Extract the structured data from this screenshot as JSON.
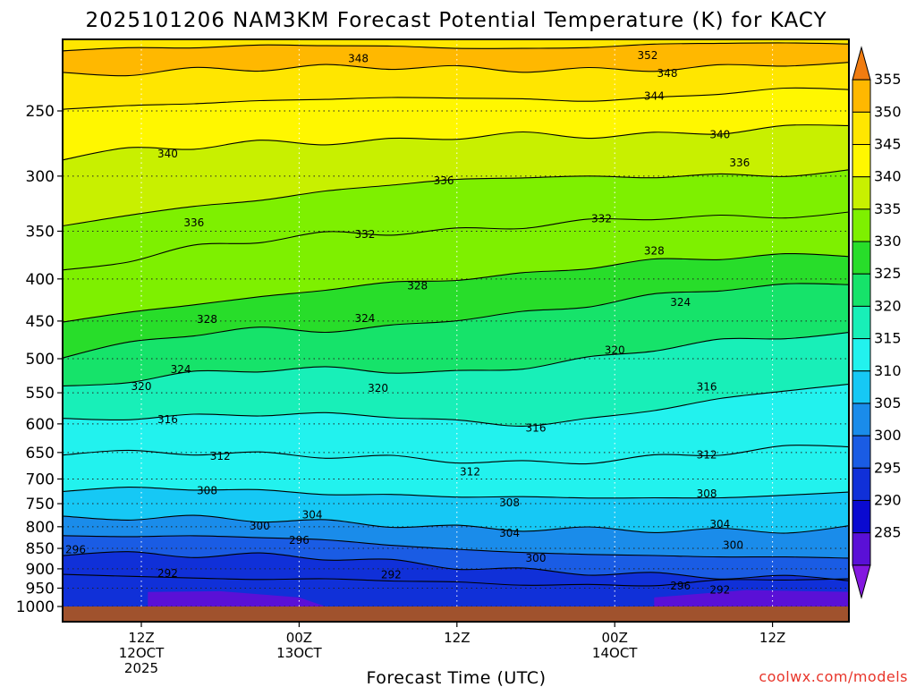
{
  "chart_data": {
    "type": "heatmap",
    "title": "2025101206 NAM3KM Forecast Potential Temperature (K) for KACY",
    "xlabel": "Forecast Time (UTC)",
    "ylabel": "",
    "credit": "coolwx.com/models",
    "y_scale": "log",
    "y_reversed": true,
    "y_range": [
      200,
      1000
    ],
    "y_ticks": [
      "250",
      "300",
      "350",
      "400",
      "450",
      "500",
      "550",
      "600",
      "650",
      "700",
      "750",
      "800",
      "850",
      "900",
      "950",
      "1000"
    ],
    "x_ticks": [
      {
        "hour": 6,
        "line1": "12Z",
        "line2": "12OCT",
        "line3": "2025"
      },
      {
        "hour": 18,
        "line1": "00Z",
        "line2": "13OCT",
        "line3": ""
      },
      {
        "hour": 30,
        "line1": "12Z",
        "line2": "",
        "line3": ""
      },
      {
        "hour": 42,
        "line1": "00Z",
        "line2": "14OCT",
        "line3": ""
      },
      {
        "hour": 54,
        "line1": "12Z",
        "line2": "",
        "line3": ""
      }
    ],
    "x_range": [
      0,
      60
    ],
    "grid": true,
    "colorbar": {
      "unit": "K",
      "labels": [
        "355",
        "350",
        "345",
        "340",
        "335",
        "330",
        "325",
        "320",
        "315",
        "310",
        "305",
        "300",
        "295",
        "290",
        "285"
      ],
      "levels": [
        355,
        350,
        345,
        340,
        335,
        330,
        325,
        320,
        315,
        310,
        305,
        300,
        295,
        290,
        285,
        280
      ],
      "colors": [
        "#f07c10",
        "#ffb800",
        "#ffe600",
        "#fff700",
        "#c8f000",
        "#7ef000",
        "#28dd2a",
        "#16e36a",
        "#18efb8",
        "#22f2ee",
        "#16c8f5",
        "#1a8cea",
        "#1a5ce4",
        "#1030d8",
        "#0a0ad0",
        "#5a10d6",
        "#8418e0"
      ]
    },
    "contours": [
      {
        "label": "292",
        "pressures": [
          914,
          915,
          920,
          926,
          930,
          934,
          936,
          937,
          938,
          940,
          934,
          930,
          930
        ]
      },
      {
        "label": "296",
        "pressures": [
          858,
          860,
          865,
          870,
          876,
          884,
          892,
          900,
          908,
          918,
          924,
          925,
          923
        ]
      },
      {
        "label": "300",
        "pressures": [
          818,
          820,
          824,
          828,
          832,
          840,
          848,
          858,
          866,
          872,
          872,
          870,
          868
        ]
      },
      {
        "label": "304",
        "pressures": [
          780,
          782,
          784,
          786,
          788,
          792,
          800,
          806,
          810,
          810,
          808,
          805,
          800
        ]
      },
      {
        "label": "308",
        "pressures": [
          724,
          722,
          722,
          722,
          726,
          730,
          736,
          740,
          740,
          738,
          734,
          730,
          726
        ]
      },
      {
        "label": "312",
        "pressures": [
          654,
          652,
          650,
          650,
          654,
          660,
          668,
          672,
          666,
          656,
          648,
          642,
          638
        ]
      },
      {
        "label": "316",
        "pressures": [
          596,
          590,
          584,
          582,
          584,
          590,
          598,
          602,
          590,
          574,
          560,
          548,
          540
        ]
      },
      {
        "label": "320",
        "pressures": [
          542,
          530,
          518,
          516,
          516,
          520,
          520,
          510,
          498,
          486,
          478,
          472,
          468
        ]
      },
      {
        "label": "324",
        "pressures": [
          494,
          478,
          466,
          462,
          464,
          458,
          446,
          438,
          430,
          420,
          414,
          408,
          404
        ]
      },
      {
        "label": "328",
        "pressures": [
          448,
          440,
          430,
          424,
          412,
          404,
          398,
          394,
          388,
          382,
          378,
          374,
          372
        ]
      },
      {
        "label": "332",
        "pressures": [
          392,
          380,
          368,
          360,
          352,
          350,
          348,
          346,
          342,
          338,
          336,
          334,
          332
        ]
      },
      {
        "label": "336",
        "pressures": [
          346,
          336,
          328,
          320,
          312,
          306,
          304,
          302,
          302,
          300,
          298,
          298,
          296
        ]
      },
      {
        "label": "340",
        "pressures": [
          286,
          280,
          276,
          272,
          272,
          272,
          270,
          268,
          268,
          266,
          264,
          262,
          260
        ]
      },
      {
        "label": "344",
        "pressures": [
          250,
          246,
          244,
          242,
          242,
          242,
          242,
          242,
          242,
          240,
          238,
          236,
          236
        ]
      },
      {
        "label": "348",
        "pressures": [
          226,
          224,
          222,
          222,
          222,
          222,
          222,
          222,
          222,
          222,
          222,
          220,
          220
        ]
      },
      {
        "label": "352",
        "pressures": [
          210,
          209,
          209,
          209,
          209,
          209,
          209,
          209,
          209,
          208,
          208,
          207,
          207
        ]
      }
    ],
    "contour_labels": [
      {
        "text": "348",
        "hour": 22.5,
        "p": 216
      },
      {
        "text": "352",
        "hour": 44.5,
        "p": 214
      },
      {
        "text": "348",
        "hour": 46,
        "p": 225
      },
      {
        "text": "344",
        "hour": 45,
        "p": 240
      },
      {
        "text": "340",
        "hour": 50,
        "p": 267
      },
      {
        "text": "340",
        "hour": 8,
        "p": 282
      },
      {
        "text": "336",
        "hour": 29,
        "p": 304
      },
      {
        "text": "336",
        "hour": 51.5,
        "p": 289
      },
      {
        "text": "336",
        "hour": 10,
        "p": 342
      },
      {
        "text": "332",
        "hour": 23,
        "p": 353
      },
      {
        "text": "332",
        "hour": 41,
        "p": 338
      },
      {
        "text": "328",
        "hour": 45,
        "p": 370
      },
      {
        "text": "328",
        "hour": 27,
        "p": 408
      },
      {
        "text": "328",
        "hour": 11,
        "p": 448
      },
      {
        "text": "324",
        "hour": 23,
        "p": 447
      },
      {
        "text": "324",
        "hour": 47,
        "p": 427
      },
      {
        "text": "324",
        "hour": 9,
        "p": 515
      },
      {
        "text": "320",
        "hour": 6,
        "p": 540
      },
      {
        "text": "320",
        "hour": 24,
        "p": 543
      },
      {
        "text": "320",
        "hour": 42,
        "p": 488
      },
      {
        "text": "316",
        "hour": 8,
        "p": 593
      },
      {
        "text": "316",
        "hour": 49,
        "p": 541
      },
      {
        "text": "316",
        "hour": 36,
        "p": 607
      },
      {
        "text": "312",
        "hour": 12,
        "p": 657
      },
      {
        "text": "312",
        "hour": 31,
        "p": 686
      },
      {
        "text": "312",
        "hour": 49,
        "p": 654
      },
      {
        "text": "308",
        "hour": 11,
        "p": 723
      },
      {
        "text": "308",
        "hour": 34,
        "p": 748
      },
      {
        "text": "308",
        "hour": 49,
        "p": 730
      },
      {
        "text": "304",
        "hour": 19,
        "p": 774
      },
      {
        "text": "304",
        "hour": 34,
        "p": 814
      },
      {
        "text": "304",
        "hour": 50,
        "p": 794
      },
      {
        "text": "300",
        "hour": 15,
        "p": 798
      },
      {
        "text": "300",
        "hour": 36,
        "p": 874
      },
      {
        "text": "300",
        "hour": 51,
        "p": 842
      },
      {
        "text": "296",
        "hour": 1,
        "p": 853
      },
      {
        "text": "296",
        "hour": 18,
        "p": 831
      },
      {
        "text": "296",
        "hour": 47,
        "p": 944
      },
      {
        "text": "292",
        "hour": 8,
        "p": 912
      },
      {
        "text": "292",
        "hour": 25,
        "p": 915
      },
      {
        "text": "292",
        "hour": 50,
        "p": 955
      }
    ]
  }
}
